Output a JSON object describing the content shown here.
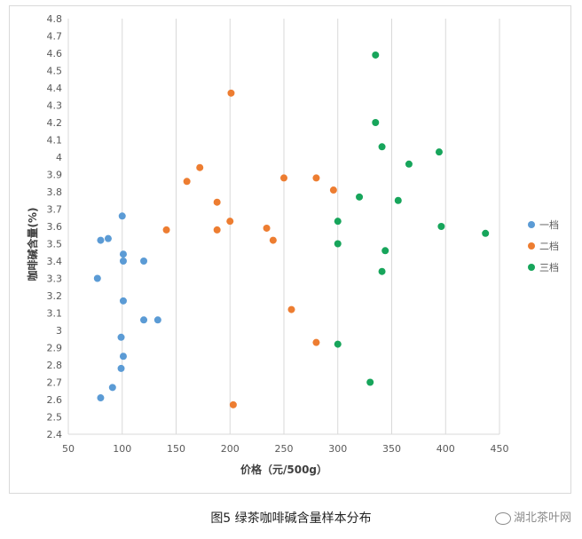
{
  "chart_data": {
    "type": "scatter",
    "xlabel": "价格（元/500g）",
    "ylabel": "咖啡碱含量(%)",
    "xlim": [
      50,
      450
    ],
    "ylim": [
      2.4,
      4.8
    ],
    "xticks": [
      50,
      100,
      150,
      200,
      250,
      300,
      350,
      400,
      450
    ],
    "yticks": [
      2.4,
      2.5,
      2.6,
      2.7,
      2.8,
      2.9,
      3,
      3.1,
      3.2,
      3.3,
      3.4,
      3.5,
      3.6,
      3.7,
      3.8,
      3.9,
      4,
      4.1,
      4.2,
      4.3,
      4.4,
      4.5,
      4.6,
      4.7,
      4.8
    ],
    "legend_position": "right",
    "series": [
      {
        "name": "一档",
        "color": "#5b9bd5",
        "points": [
          [
            100,
            3.66
          ],
          [
            80,
            3.52
          ],
          [
            87,
            3.53
          ],
          [
            101,
            3.44
          ],
          [
            101,
            3.4
          ],
          [
            120,
            3.4
          ],
          [
            77,
            3.3
          ],
          [
            101,
            3.17
          ],
          [
            120,
            3.06
          ],
          [
            133,
            3.06
          ],
          [
            99,
            2.96
          ],
          [
            101,
            2.85
          ],
          [
            99,
            2.78
          ],
          [
            91,
            2.67
          ],
          [
            80,
            2.61
          ]
        ]
      },
      {
        "name": "二档",
        "color": "#ed7d31",
        "points": [
          [
            201,
            4.37
          ],
          [
            172,
            3.94
          ],
          [
            160,
            3.86
          ],
          [
            250,
            3.88
          ],
          [
            280,
            3.88
          ],
          [
            296,
            3.81
          ],
          [
            188,
            3.74
          ],
          [
            200,
            3.63
          ],
          [
            141,
            3.58
          ],
          [
            188,
            3.58
          ],
          [
            234,
            3.59
          ],
          [
            240,
            3.52
          ],
          [
            257,
            3.12
          ],
          [
            280,
            2.93
          ],
          [
            203,
            2.57
          ]
        ]
      },
      {
        "name": "三档",
        "color": "#17a55b",
        "points": [
          [
            335,
            4.59
          ],
          [
            335,
            4.2
          ],
          [
            341,
            4.06
          ],
          [
            366,
            3.96
          ],
          [
            394,
            4.03
          ],
          [
            320,
            3.77
          ],
          [
            356,
            3.75
          ],
          [
            300,
            3.63
          ],
          [
            396,
            3.6
          ],
          [
            437,
            3.56
          ],
          [
            300,
            3.5
          ],
          [
            344,
            3.46
          ],
          [
            341,
            3.34
          ],
          [
            300,
            2.92
          ],
          [
            330,
            2.7
          ]
        ]
      }
    ]
  },
  "caption": "图5  绿茶咖啡碱含量样本分布",
  "watermark": "湖北茶叶网"
}
